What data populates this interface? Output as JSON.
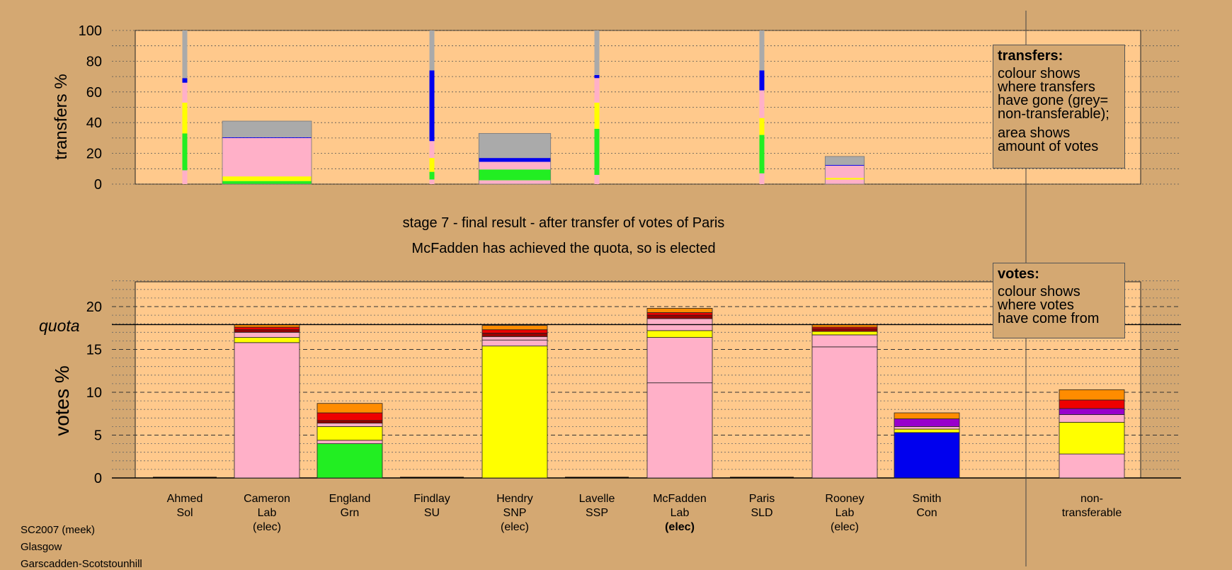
{
  "captions": [
    "SC2007 (meek)",
    "Glasgow",
    "Garscadden-Scotstounhill"
  ],
  "stage_line1": "stage 7 - final result - after transfer of votes of Paris",
  "stage_line2": "McFadden has achieved the quota, so is elected",
  "legend_transfers": {
    "title": "transfers:",
    "para1": [
      "colour shows",
      "where transfers",
      "have gone (grey=",
      "non-transferable);"
    ],
    "para2": [
      "area shows",
      "amount of votes"
    ]
  },
  "legend_votes": {
    "title": "votes:",
    "para1": [
      "colour shows",
      "where votes",
      "have come from"
    ]
  },
  "colors": {
    "bg": "#d4a872",
    "panel": "#ffc98c",
    "pink": "#ffb0c8",
    "yellow": "#ffff00",
    "green": "#22ee22",
    "blue": "#0000ee",
    "grey": "#aaaaaa",
    "red": "#ee0000",
    "orange": "#ff8c00",
    "purple": "#9900cc",
    "darkred": "#990000"
  },
  "chart_data": [
    {
      "type": "bar",
      "title": "",
      "ylabel": "transfers %",
      "ylim": [
        0,
        100
      ],
      "yticks": [
        "0",
        "20",
        "40",
        "60",
        "80",
        "100"
      ],
      "bars": [
        {
          "candidate": "Ahmed",
          "width_pct": 0.4,
          "segments": [
            [
              "pink",
              9
            ],
            [
              "green",
              24
            ],
            [
              "yellow",
              20
            ],
            [
              "pink",
              13
            ],
            [
              "blue",
              3
            ],
            [
              "grey",
              31
            ]
          ]
        },
        {
          "candidate": "Cameron",
          "width_pct": 41,
          "segments": [
            [
              "green",
              2
            ],
            [
              "yellow",
              3
            ],
            [
              "pink",
              25
            ],
            [
              "blue",
              0.5
            ],
            [
              "grey",
              10.5
            ]
          ]
        },
        {
          "candidate": "Findlay",
          "width_pct": 0.3,
          "segments": [
            [
              "pink",
              3
            ],
            [
              "green",
              5
            ],
            [
              "yellow",
              9
            ],
            [
              "pink",
              11
            ],
            [
              "blue",
              46
            ],
            [
              "grey",
              26
            ]
          ]
        },
        {
          "candidate": "Hendry",
          "width_pct": 33,
          "segments": [
            [
              "pink",
              2.5
            ],
            [
              "green",
              7
            ],
            [
              "pink",
              5
            ],
            [
              "blue",
              2.5
            ],
            [
              "grey",
              16
            ]
          ]
        },
        {
          "candidate": "Lavelle",
          "width_pct": 0.2,
          "segments": [
            [
              "pink",
              6
            ],
            [
              "green",
              30
            ],
            [
              "yellow",
              17
            ],
            [
              "pink",
              16
            ],
            [
              "blue",
              2
            ],
            [
              "grey",
              29
            ]
          ]
        },
        {
          "candidate": "Paris",
          "width_pct": 0.6,
          "segments": [
            [
              "pink",
              7
            ],
            [
              "green",
              25
            ],
            [
              "yellow",
              11
            ],
            [
              "pink",
              18
            ],
            [
              "blue",
              13
            ],
            [
              "grey",
              26
            ]
          ]
        },
        {
          "candidate": "Rooney",
          "width_pct": 18,
          "segments": [
            [
              "pink",
              3
            ],
            [
              "yellow",
              1
            ],
            [
              "pink",
              8
            ],
            [
              "blue",
              0.5
            ],
            [
              "grey",
              5.5
            ]
          ]
        }
      ]
    },
    {
      "type": "bar",
      "title": "",
      "ylabel": "votes %",
      "ylim": [
        0,
        23
      ],
      "yticks": [
        "0",
        "5",
        "10",
        "15",
        "20"
      ],
      "quota": 17.9,
      "quota_label": "quota",
      "categories": [
        [
          "Ahmed",
          "Sol",
          ""
        ],
        [
          "Cameron",
          "Lab",
          "(elec)"
        ],
        [
          "England",
          "Grn",
          ""
        ],
        [
          "Findlay",
          "SU",
          ""
        ],
        [
          "Hendry",
          "SNP",
          "(elec)"
        ],
        [
          "Lavelle",
          "SSP",
          ""
        ],
        [
          "McFadden",
          "Lab",
          "(elec)"
        ],
        [
          "Paris",
          "SLD",
          ""
        ],
        [
          "Rooney",
          "Lab",
          "(elec)"
        ],
        [
          "Smith",
          "Con",
          ""
        ],
        [
          "non-",
          "transferable",
          ""
        ]
      ],
      "stacks": [
        [],
        [
          [
            "pink",
            15.8
          ],
          [
            "yellow",
            0.6
          ],
          [
            "pink",
            0.6
          ],
          [
            "darkred",
            0.3
          ],
          [
            "red",
            0.3
          ],
          [
            "orange",
            0.3
          ]
        ],
        [
          [
            "green",
            4.0
          ],
          [
            "pink",
            0.4
          ],
          [
            "yellow",
            1.6
          ],
          [
            "pink",
            0.4
          ],
          [
            "darkred",
            0.3
          ],
          [
            "red",
            0.9
          ],
          [
            "orange",
            1.1
          ]
        ],
        [],
        [
          [
            "yellow",
            15.4
          ],
          [
            "pink",
            0.7
          ],
          [
            "pink",
            0.4
          ],
          [
            "darkred",
            0.4
          ],
          [
            "red",
            0.4
          ],
          [
            "orange",
            0.5
          ]
        ],
        [],
        [
          [
            "pink",
            11.1
          ],
          [
            "pink",
            5.3
          ],
          [
            "yellow",
            0.8
          ],
          [
            "pink",
            1.4
          ],
          [
            "darkred",
            0.4
          ],
          [
            "red",
            0.3
          ],
          [
            "orange",
            0.5
          ]
        ],
        [],
        [
          [
            "pink",
            15.3
          ],
          [
            "pink",
            1.4
          ],
          [
            "yellow",
            0.4
          ],
          [
            "darkred",
            0.3
          ],
          [
            "red",
            0.2
          ],
          [
            "orange",
            0.3
          ]
        ],
        [
          [
            "blue",
            5.3
          ],
          [
            "yellow",
            0.4
          ],
          [
            "pink",
            0.3
          ],
          [
            "purple",
            0.9
          ],
          [
            "orange",
            0.7
          ]
        ],
        [
          [
            "pink",
            2.8
          ],
          [
            "yellow",
            3.7
          ],
          [
            "pink",
            0.9
          ],
          [
            "purple",
            0.7
          ],
          [
            "red",
            1.0
          ],
          [
            "orange",
            1.2
          ]
        ]
      ]
    }
  ]
}
